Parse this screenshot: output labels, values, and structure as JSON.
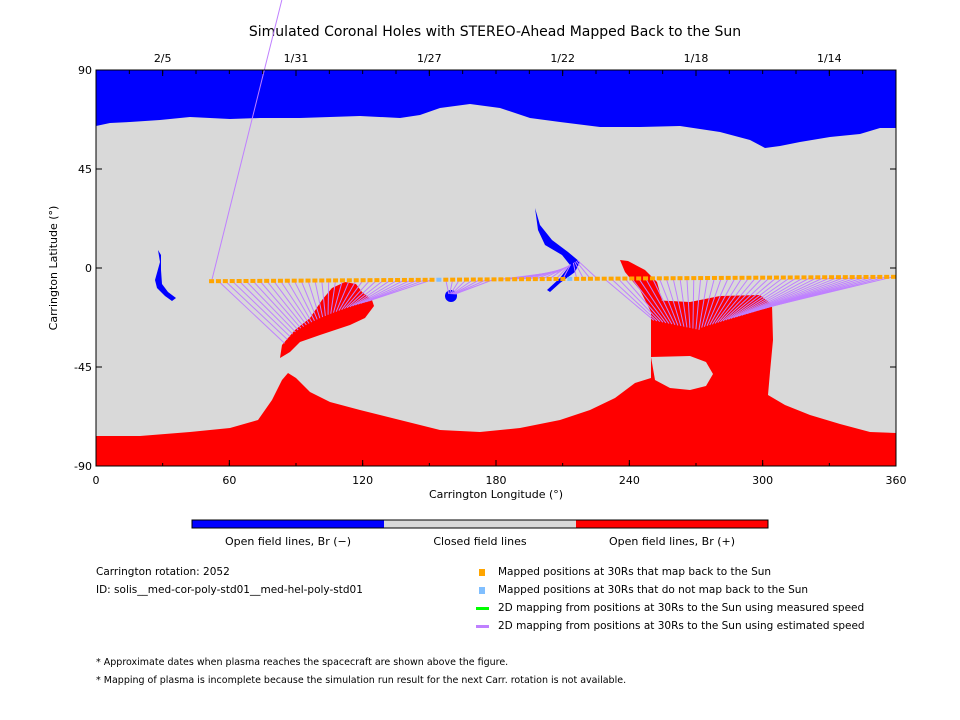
{
  "chart_data": {
    "type": "map",
    "title": "Simulated Coronal Holes with STEREO-Ahead Mapped Back to the Sun",
    "xlabel": "Carrington Longitude (°)",
    "ylabel": "Carrington Latitude (°)",
    "xlim": [
      0,
      360
    ],
    "ylim": [
      -90,
      90
    ],
    "xticks": [
      "0",
      "60",
      "120",
      "180",
      "240",
      "300",
      "360"
    ],
    "yticks": [
      "90",
      "45",
      "0",
      "-45",
      "-90"
    ],
    "top_date_ticks": [
      {
        "label": "2/5",
        "lon": 30
      },
      {
        "label": "1/31",
        "lon": 90
      },
      {
        "label": "1/27",
        "lon": 150
      },
      {
        "label": "1/22",
        "lon": 210
      },
      {
        "label": "1/18",
        "lon": 270
      },
      {
        "label": "1/14",
        "lon": 330
      }
    ],
    "colorbar": [
      {
        "label": "Open field lines, Br (−)",
        "color": "#0000ff"
      },
      {
        "label": "Closed field lines",
        "color": "#d9d9d9"
      },
      {
        "label": "Open field lines, Br (+)",
        "color": "#ff0000"
      }
    ],
    "legend": [
      {
        "label": "Mapped positions at 30Rs that map back to the Sun",
        "color": "#ffa500",
        "kind": "square"
      },
      {
        "label": "Mapped positions at 30Rs that do not map back to the Sun",
        "color": "#80bfff",
        "kind": "square"
      },
      {
        "label": "2D mapping from positions at 30Rs to the Sun using measured speed",
        "color": "#00ff00",
        "kind": "line"
      },
      {
        "label": "2D mapping from positions at 30Rs to the Sun using estimated speed",
        "color": "#bf80ff",
        "kind": "line"
      }
    ],
    "mapped_track_latitude_range": [
      -6,
      -4
    ],
    "mapped_track_longitude_range": [
      52,
      360
    ],
    "unmapped_longitudes": [
      155,
      214
    ]
  },
  "info": {
    "rotation": "Carrington rotation: 2052",
    "id": "ID: solis__med-cor-poly-std01__med-hel-poly-std01"
  },
  "notes": [
    "* Approximate dates when plasma reaches the spacecraft are shown above the figure.",
    "* Mapping of plasma is incomplete because the simulation run result for the next Carr. rotation is not available."
  ]
}
